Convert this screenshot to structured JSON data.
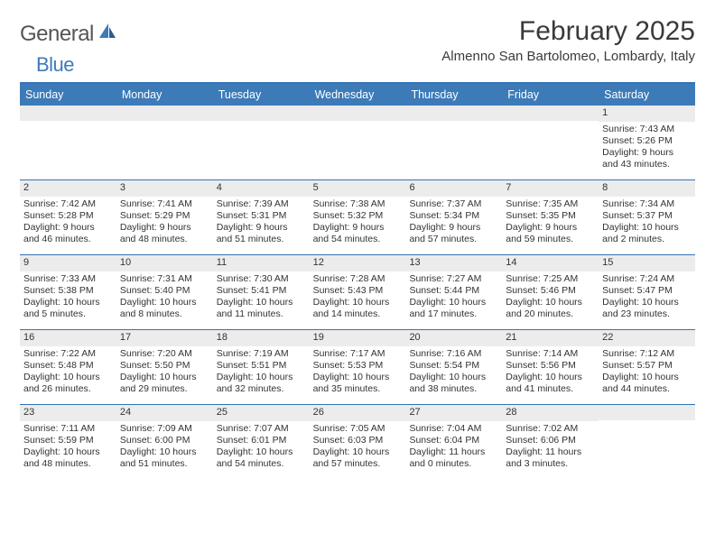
{
  "logo": {
    "word1": "General",
    "word2": "Blue"
  },
  "title": "February 2025",
  "location": "Almenno San Bartolomeo, Lombardy, Italy",
  "colors": {
    "header_bar": "#3c7bb8",
    "divider": "#3474b5",
    "daynum_bg": "#ececec",
    "text": "#333333",
    "background": "#ffffff"
  },
  "weekdays": [
    "Sunday",
    "Monday",
    "Tuesday",
    "Wednesday",
    "Thursday",
    "Friday",
    "Saturday"
  ],
  "weeks": [
    [
      null,
      null,
      null,
      null,
      null,
      null,
      {
        "n": "1",
        "sr": "Sunrise: 7:43 AM",
        "ss": "Sunset: 5:26 PM",
        "dl1": "Daylight: 9 hours",
        "dl2": "and 43 minutes."
      }
    ],
    [
      {
        "n": "2",
        "sr": "Sunrise: 7:42 AM",
        "ss": "Sunset: 5:28 PM",
        "dl1": "Daylight: 9 hours",
        "dl2": "and 46 minutes."
      },
      {
        "n": "3",
        "sr": "Sunrise: 7:41 AM",
        "ss": "Sunset: 5:29 PM",
        "dl1": "Daylight: 9 hours",
        "dl2": "and 48 minutes."
      },
      {
        "n": "4",
        "sr": "Sunrise: 7:39 AM",
        "ss": "Sunset: 5:31 PM",
        "dl1": "Daylight: 9 hours",
        "dl2": "and 51 minutes."
      },
      {
        "n": "5",
        "sr": "Sunrise: 7:38 AM",
        "ss": "Sunset: 5:32 PM",
        "dl1": "Daylight: 9 hours",
        "dl2": "and 54 minutes."
      },
      {
        "n": "6",
        "sr": "Sunrise: 7:37 AM",
        "ss": "Sunset: 5:34 PM",
        "dl1": "Daylight: 9 hours",
        "dl2": "and 57 minutes."
      },
      {
        "n": "7",
        "sr": "Sunrise: 7:35 AM",
        "ss": "Sunset: 5:35 PM",
        "dl1": "Daylight: 9 hours",
        "dl2": "and 59 minutes."
      },
      {
        "n": "8",
        "sr": "Sunrise: 7:34 AM",
        "ss": "Sunset: 5:37 PM",
        "dl1": "Daylight: 10 hours",
        "dl2": "and 2 minutes."
      }
    ],
    [
      {
        "n": "9",
        "sr": "Sunrise: 7:33 AM",
        "ss": "Sunset: 5:38 PM",
        "dl1": "Daylight: 10 hours",
        "dl2": "and 5 minutes."
      },
      {
        "n": "10",
        "sr": "Sunrise: 7:31 AM",
        "ss": "Sunset: 5:40 PM",
        "dl1": "Daylight: 10 hours",
        "dl2": "and 8 minutes."
      },
      {
        "n": "11",
        "sr": "Sunrise: 7:30 AM",
        "ss": "Sunset: 5:41 PM",
        "dl1": "Daylight: 10 hours",
        "dl2": "and 11 minutes."
      },
      {
        "n": "12",
        "sr": "Sunrise: 7:28 AM",
        "ss": "Sunset: 5:43 PM",
        "dl1": "Daylight: 10 hours",
        "dl2": "and 14 minutes."
      },
      {
        "n": "13",
        "sr": "Sunrise: 7:27 AM",
        "ss": "Sunset: 5:44 PM",
        "dl1": "Daylight: 10 hours",
        "dl2": "and 17 minutes."
      },
      {
        "n": "14",
        "sr": "Sunrise: 7:25 AM",
        "ss": "Sunset: 5:46 PM",
        "dl1": "Daylight: 10 hours",
        "dl2": "and 20 minutes."
      },
      {
        "n": "15",
        "sr": "Sunrise: 7:24 AM",
        "ss": "Sunset: 5:47 PM",
        "dl1": "Daylight: 10 hours",
        "dl2": "and 23 minutes."
      }
    ],
    [
      {
        "n": "16",
        "sr": "Sunrise: 7:22 AM",
        "ss": "Sunset: 5:48 PM",
        "dl1": "Daylight: 10 hours",
        "dl2": "and 26 minutes."
      },
      {
        "n": "17",
        "sr": "Sunrise: 7:20 AM",
        "ss": "Sunset: 5:50 PM",
        "dl1": "Daylight: 10 hours",
        "dl2": "and 29 minutes."
      },
      {
        "n": "18",
        "sr": "Sunrise: 7:19 AM",
        "ss": "Sunset: 5:51 PM",
        "dl1": "Daylight: 10 hours",
        "dl2": "and 32 minutes."
      },
      {
        "n": "19",
        "sr": "Sunrise: 7:17 AM",
        "ss": "Sunset: 5:53 PM",
        "dl1": "Daylight: 10 hours",
        "dl2": "and 35 minutes."
      },
      {
        "n": "20",
        "sr": "Sunrise: 7:16 AM",
        "ss": "Sunset: 5:54 PM",
        "dl1": "Daylight: 10 hours",
        "dl2": "and 38 minutes."
      },
      {
        "n": "21",
        "sr": "Sunrise: 7:14 AM",
        "ss": "Sunset: 5:56 PM",
        "dl1": "Daylight: 10 hours",
        "dl2": "and 41 minutes."
      },
      {
        "n": "22",
        "sr": "Sunrise: 7:12 AM",
        "ss": "Sunset: 5:57 PM",
        "dl1": "Daylight: 10 hours",
        "dl2": "and 44 minutes."
      }
    ],
    [
      {
        "n": "23",
        "sr": "Sunrise: 7:11 AM",
        "ss": "Sunset: 5:59 PM",
        "dl1": "Daylight: 10 hours",
        "dl2": "and 48 minutes."
      },
      {
        "n": "24",
        "sr": "Sunrise: 7:09 AM",
        "ss": "Sunset: 6:00 PM",
        "dl1": "Daylight: 10 hours",
        "dl2": "and 51 minutes."
      },
      {
        "n": "25",
        "sr": "Sunrise: 7:07 AM",
        "ss": "Sunset: 6:01 PM",
        "dl1": "Daylight: 10 hours",
        "dl2": "and 54 minutes."
      },
      {
        "n": "26",
        "sr": "Sunrise: 7:05 AM",
        "ss": "Sunset: 6:03 PM",
        "dl1": "Daylight: 10 hours",
        "dl2": "and 57 minutes."
      },
      {
        "n": "27",
        "sr": "Sunrise: 7:04 AM",
        "ss": "Sunset: 6:04 PM",
        "dl1": "Daylight: 11 hours",
        "dl2": "and 0 minutes."
      },
      {
        "n": "28",
        "sr": "Sunrise: 7:02 AM",
        "ss": "Sunset: 6:06 PM",
        "dl1": "Daylight: 11 hours",
        "dl2": "and 3 minutes."
      },
      null
    ]
  ]
}
